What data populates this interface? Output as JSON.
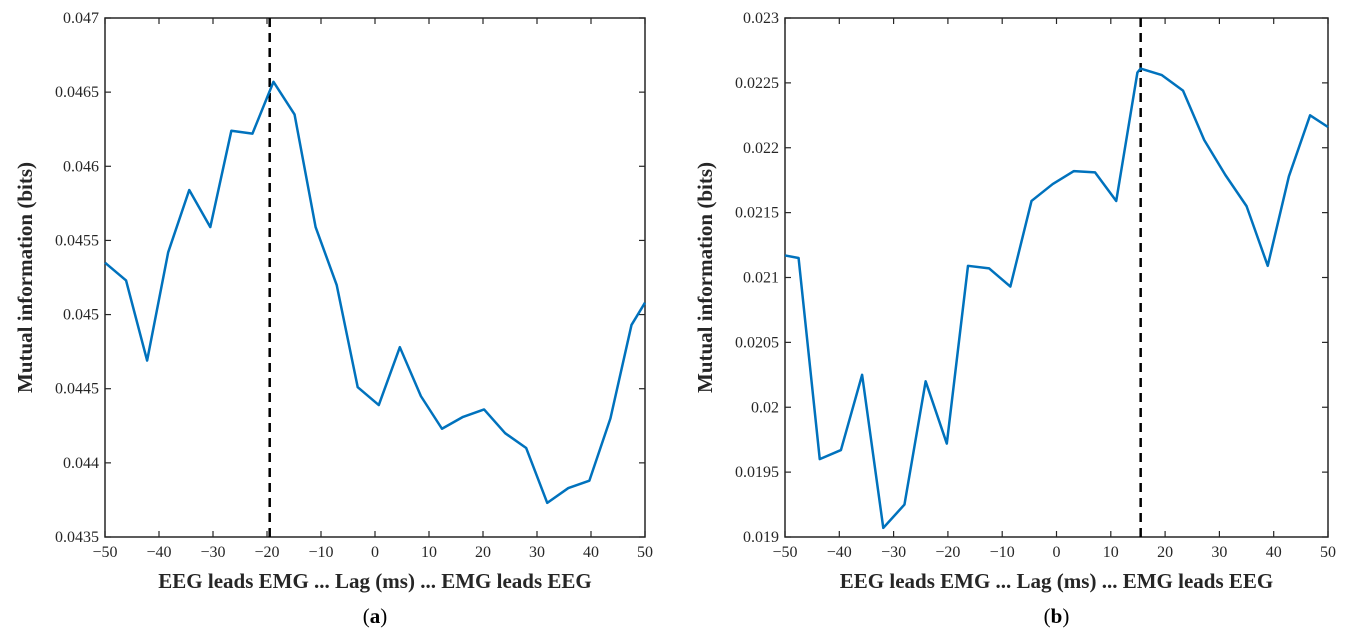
{
  "chart_data": [
    {
      "type": "line",
      "caption": "(a)",
      "caption_letter": "a",
      "xlabel": "EEG leads EMG ... Lag (ms) ... EMG leads EEG",
      "ylabel": "Mutual information (bits)",
      "xlim": [
        -50,
        50
      ],
      "ylim": [
        0.0435,
        0.047
      ],
      "xticks": [
        -50,
        -40,
        -30,
        -20,
        -10,
        0,
        10,
        20,
        30,
        40,
        50
      ],
      "xtick_labels": [
        "−50",
        "−40",
        "−30",
        "−20",
        "−10",
        "0",
        "10",
        "20",
        "30",
        "40",
        "50"
      ],
      "yticks": [
        0.0435,
        0.044,
        0.0445,
        0.045,
        0.0455,
        0.046,
        0.0465,
        0.047
      ],
      "ytick_labels": [
        "0.0435",
        "0.044",
        "0.0445",
        "0.045",
        "0.0455",
        "0.046",
        "0.0465",
        "0.047"
      ],
      "vline_x": -19.5,
      "line_color": "#0072BD",
      "grid": false,
      "x": [
        -50,
        -46.1,
        -42.2,
        -38.3,
        -34.4,
        -30.5,
        -26.6,
        -22.7,
        -18.8,
        -14.9,
        -11.0,
        -7.1,
        -3.2,
        0.7,
        4.6,
        8.5,
        12.4,
        16.3,
        20.2,
        24.1,
        28.0,
        31.9,
        35.8,
        39.7,
        43.6,
        47.5,
        50
      ],
      "y": [
        0.04535,
        0.04523,
        0.04469,
        0.04542,
        0.04584,
        0.04559,
        0.04624,
        0.04622,
        0.04657,
        0.04635,
        0.04559,
        0.0452,
        0.04451,
        0.04439,
        0.04478,
        0.04445,
        0.04423,
        0.04431,
        0.04436,
        0.0442,
        0.0441,
        0.04373,
        0.04383,
        0.04388,
        0.0443,
        0.04493,
        0.04508
      ]
    },
    {
      "type": "line",
      "caption": "(b)",
      "caption_letter": "b",
      "xlabel": "EEG leads EMG ... Lag (ms) ... EMG leads EEG",
      "ylabel": "Mutual information (bits)",
      "xlim": [
        -50,
        50
      ],
      "ylim": [
        0.019,
        0.023
      ],
      "xticks": [
        -50,
        -40,
        -30,
        -20,
        -10,
        0,
        10,
        20,
        30,
        40,
        50
      ],
      "xtick_labels": [
        "−50",
        "−40",
        "−30",
        "−20",
        "−10",
        "0",
        "10",
        "20",
        "30",
        "40",
        "50"
      ],
      "yticks": [
        0.019,
        0.0195,
        0.02,
        0.0205,
        0.021,
        0.0215,
        0.022,
        0.0225,
        0.023
      ],
      "ytick_labels": [
        "0.019",
        "0.0195",
        "0.02",
        "0.0205",
        "0.021",
        "0.0215",
        "0.022",
        "0.0225",
        "0.023"
      ],
      "vline_x": 15.5,
      "line_color": "#0072BD",
      "grid": false,
      "x": [
        -50,
        -47.5,
        -43.6,
        -39.7,
        -35.8,
        -31.9,
        -28.0,
        -24.1,
        -20.2,
        -16.3,
        -12.4,
        -8.5,
        -4.6,
        -0.7,
        3.2,
        7.1,
        11.0,
        14.9,
        15.5,
        19.4,
        23.3,
        27.2,
        31.1,
        35.0,
        38.9,
        42.8,
        46.7,
        50
      ],
      "y": [
        0.02117,
        0.02115,
        0.0196,
        0.01967,
        0.02025,
        0.01907,
        0.01925,
        0.0202,
        0.01972,
        0.02109,
        0.02107,
        0.02093,
        0.02159,
        0.02172,
        0.02182,
        0.02181,
        0.02159,
        0.02258,
        0.02261,
        0.02256,
        0.02244,
        0.02206,
        0.02179,
        0.02155,
        0.02109,
        0.02178,
        0.02225,
        0.02216
      ]
    }
  ]
}
